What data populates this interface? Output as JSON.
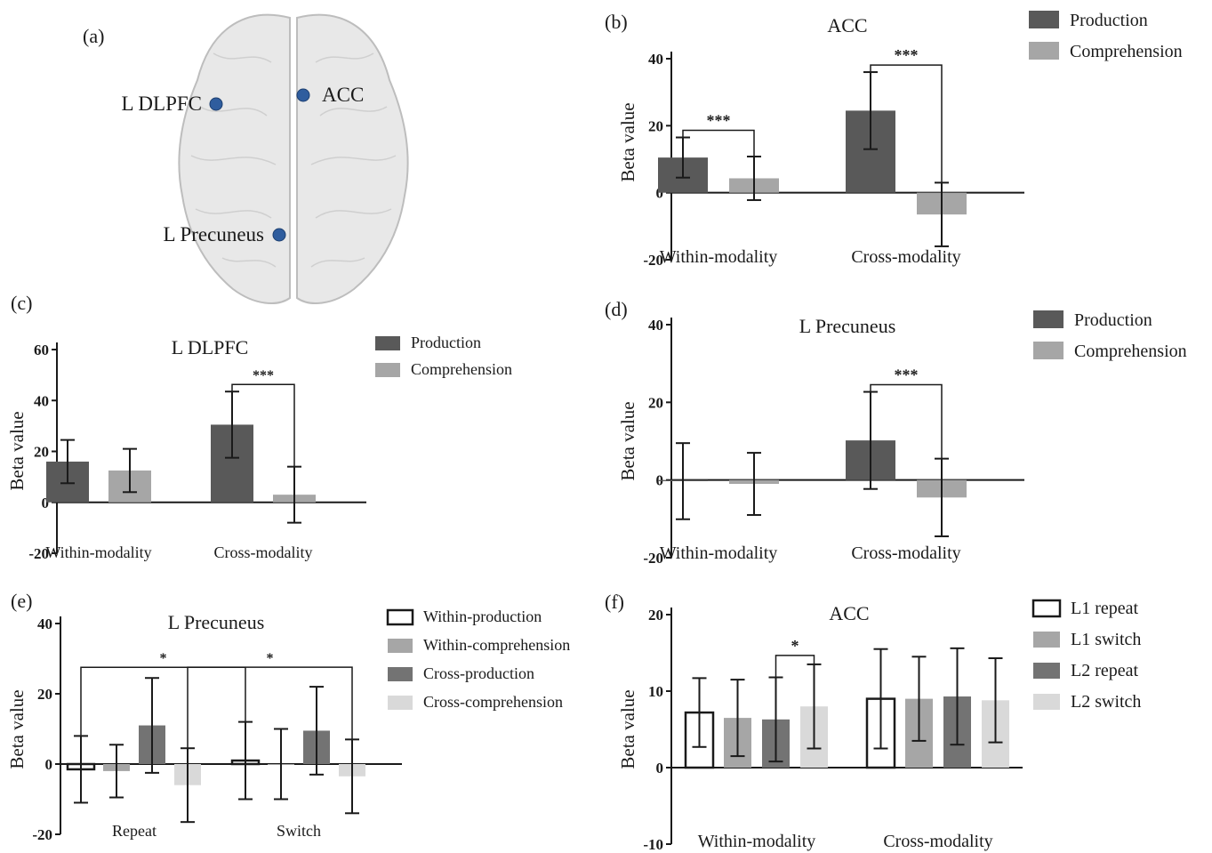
{
  "brain": {
    "panel_label": "(a)",
    "regions": [
      {
        "id": "dlpfc",
        "label": "L DLPFC"
      },
      {
        "id": "acc",
        "label": "ACC"
      },
      {
        "id": "precuneus",
        "label": "L Precuneus"
      }
    ],
    "colors": {
      "marker": "#2f5d9e",
      "brain_fill": "#e6e6e6",
      "brain_stroke": "#bdbdbd"
    }
  },
  "chart_data": [
    {
      "panel": "(b)",
      "type": "bar",
      "title": "ACC",
      "xlabel": "",
      "ylabel": "Beta value",
      "ylim": [
        -20,
        40
      ],
      "yticks": [
        -20,
        0,
        20,
        40
      ],
      "categories": [
        "Within-modality",
        "Cross-modality"
      ],
      "legend": "top-right",
      "series": [
        {
          "name": "Production",
          "color": "#595959",
          "fill": "solid",
          "values": [
            10.5,
            24.5
          ],
          "errors": [
            6,
            11.5
          ]
        },
        {
          "name": "Comprehension",
          "color": "#a6a6a6",
          "fill": "solid",
          "values": [
            4.3,
            -6.5
          ],
          "errors": [
            6.5,
            9.5
          ]
        }
      ],
      "significance": [
        {
          "label": "***",
          "from": [
            0,
            0
          ],
          "to": [
            0,
            1
          ]
        },
        {
          "label": "***",
          "from": [
            1,
            0
          ],
          "to": [
            1,
            1
          ]
        }
      ]
    },
    {
      "panel": "(c)",
      "type": "bar",
      "title": "L DLPFC",
      "xlabel": "",
      "ylabel": "Beta value",
      "ylim": [
        -20,
        60
      ],
      "yticks": [
        -20,
        0,
        20,
        40,
        60
      ],
      "categories": [
        "Within-modality",
        "Cross-modality"
      ],
      "legend": "top-right",
      "series": [
        {
          "name": "Production",
          "color": "#595959",
          "fill": "solid",
          "values": [
            16,
            30.5
          ],
          "errors": [
            8.5,
            13
          ]
        },
        {
          "name": "Comprehension",
          "color": "#a6a6a6",
          "fill": "solid",
          "values": [
            12.5,
            3
          ],
          "errors": [
            8.5,
            11
          ]
        }
      ],
      "significance": [
        {
          "label": "***",
          "from": [
            1,
            0
          ],
          "to": [
            1,
            1
          ]
        }
      ]
    },
    {
      "panel": "(d)",
      "type": "bar",
      "title": "L Precuneus",
      "xlabel": "",
      "ylabel": "Beta value",
      "ylim": [
        -20,
        40
      ],
      "yticks": [
        -20,
        0,
        20,
        40
      ],
      "categories": [
        "Within-modality",
        "Cross-modality"
      ],
      "legend": "top-right",
      "series": [
        {
          "name": "Production",
          "color": "#595959",
          "fill": "solid",
          "values": [
            -0.3,
            10.2
          ],
          "errors": [
            9.8,
            12.5
          ]
        },
        {
          "name": "Comprehension",
          "color": "#a6a6a6",
          "fill": "solid",
          "values": [
            -1,
            -4.5
          ],
          "errors": [
            8,
            10
          ]
        }
      ],
      "significance": [
        {
          "label": "***",
          "from": [
            1,
            0
          ],
          "to": [
            1,
            1
          ]
        }
      ]
    },
    {
      "panel": "(e)",
      "type": "bar",
      "title": "L Precuneus",
      "xlabel": "",
      "ylabel": "Beta value",
      "ylim": [
        -20,
        40
      ],
      "yticks": [
        -20,
        0,
        20,
        40
      ],
      "categories": [
        "Repeat",
        "Switch"
      ],
      "legend": "top-right",
      "series": [
        {
          "name": "Within-production",
          "color": "#1a1a1a",
          "fill": "hollow",
          "values": [
            -1.5,
            1
          ],
          "errors": [
            9.5,
            11
          ]
        },
        {
          "name": "Within-comprehension",
          "color": "#a6a6a6",
          "fill": "solid",
          "values": [
            -2,
            0
          ],
          "errors": [
            7.5,
            10
          ]
        },
        {
          "name": "Cross-production",
          "color": "#737373",
          "fill": "solid",
          "values": [
            11,
            9.5
          ],
          "errors": [
            13.5,
            12.5
          ]
        },
        {
          "name": "Cross-comprehension",
          "color": "#d9d9d9",
          "fill": "solid",
          "values": [
            -6,
            -3.5
          ],
          "errors": [
            10.5,
            10.5
          ]
        }
      ],
      "significance": [
        {
          "label": "*",
          "from": [
            0,
            0
          ],
          "to": [
            1,
            0
          ]
        },
        {
          "label": "*",
          "from": [
            0,
            3
          ],
          "to": [
            1,
            3
          ]
        }
      ]
    },
    {
      "panel": "(f)",
      "type": "bar",
      "title": "ACC",
      "xlabel": "",
      "ylabel": "Beta value",
      "ylim": [
        -10,
        20
      ],
      "yticks": [
        -10,
        0,
        10,
        20
      ],
      "categories": [
        "Within-modality",
        "Cross-modality"
      ],
      "legend": "top-right",
      "series": [
        {
          "name": "L1 repeat",
          "color": "#1a1a1a",
          "fill": "hollow",
          "values": [
            7.2,
            9
          ],
          "errors": [
            4.5,
            6.5
          ]
        },
        {
          "name": "L1 switch",
          "color": "#a6a6a6",
          "fill": "solid",
          "values": [
            6.5,
            9
          ],
          "errors": [
            5,
            5.5
          ]
        },
        {
          "name": "L2 repeat",
          "color": "#737373",
          "fill": "solid",
          "values": [
            6.3,
            9.3
          ],
          "errors": [
            5.5,
            6.3
          ]
        },
        {
          "name": "L2 switch",
          "color": "#d9d9d9",
          "fill": "solid",
          "values": [
            8,
            8.8
          ],
          "errors": [
            5.5,
            5.5
          ]
        }
      ],
      "significance": [
        {
          "label": "*",
          "from": [
            0,
            2
          ],
          "to": [
            0,
            3
          ]
        }
      ]
    }
  ]
}
